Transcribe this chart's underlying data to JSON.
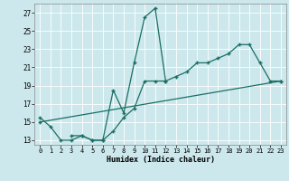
{
  "xlabel": "Humidex (Indice chaleur)",
  "bg_color": "#cce8ec",
  "grid_color": "#ffffff",
  "line_color": "#1a6e64",
  "xlim": [
    -0.5,
    23.5
  ],
  "ylim": [
    12.5,
    28.0
  ],
  "xticks": [
    0,
    1,
    2,
    3,
    4,
    5,
    6,
    7,
    8,
    9,
    10,
    11,
    12,
    13,
    14,
    15,
    16,
    17,
    18,
    19,
    20,
    21,
    22,
    23
  ],
  "yticks": [
    13,
    15,
    17,
    19,
    21,
    23,
    25,
    27
  ],
  "series1_x": [
    0,
    1,
    2,
    3,
    4,
    5,
    6,
    7,
    8,
    9,
    10,
    11,
    12
  ],
  "series1_y": [
    15.5,
    14.5,
    13.0,
    13.0,
    13.5,
    13.0,
    13.0,
    18.5,
    16.0,
    21.5,
    26.5,
    27.5,
    19.5
  ],
  "series2_x": [
    3,
    4,
    5,
    6,
    7,
    8,
    9,
    10,
    11,
    12,
    13,
    14,
    15,
    16,
    17,
    18,
    19,
    20,
    21,
    22,
    23
  ],
  "series2_y": [
    13.5,
    13.5,
    13.0,
    13.0,
    14.0,
    15.5,
    16.5,
    19.5,
    19.5,
    19.5,
    20.0,
    20.5,
    21.5,
    21.5,
    22.0,
    22.5,
    23.5,
    23.5,
    21.5,
    19.5,
    19.5
  ],
  "series3_x": [
    0,
    23
  ],
  "series3_y": [
    15.0,
    19.5
  ]
}
